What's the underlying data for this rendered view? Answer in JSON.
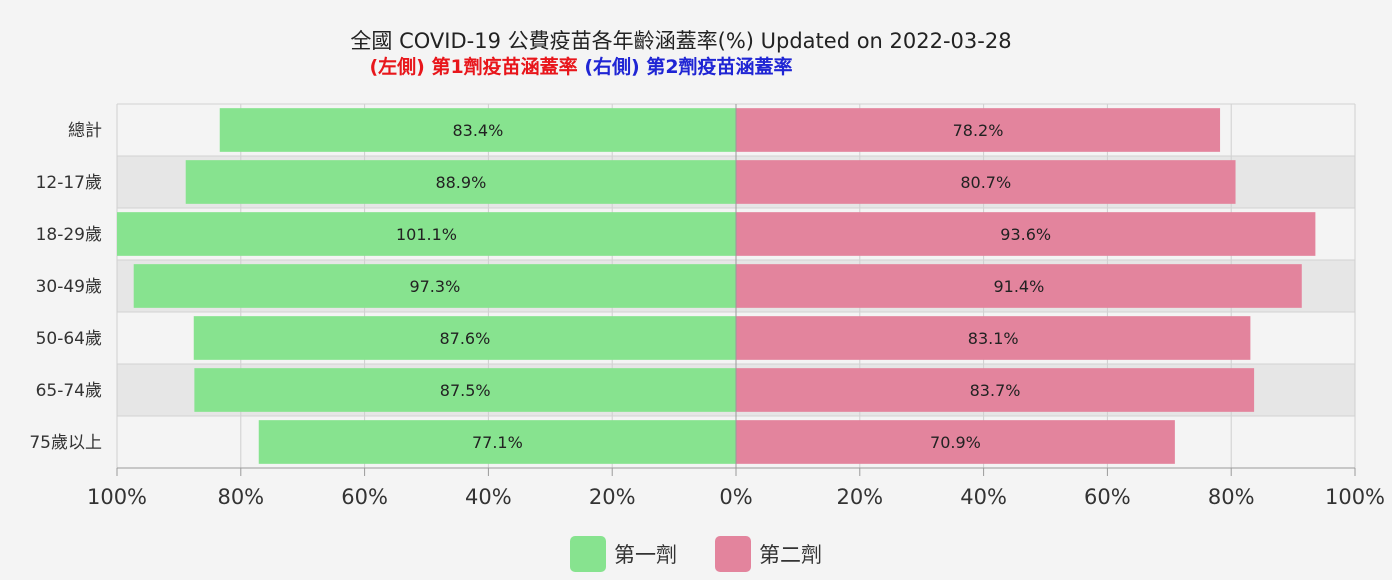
{
  "header": {
    "title": "全國 COVID-19 公費疫苗各年齡涵蓋率(%) Updated on 2022-03-28",
    "subtitle_left_tag": "(左側)",
    "subtitle_left_text": "第1劑疫苗涵蓋率",
    "subtitle_right_tag": "(右側)",
    "subtitle_right_text": "第2劑疫苗涵蓋率"
  },
  "legend": {
    "dose1_label": "第一劑",
    "dose2_label": "第二劑"
  },
  "colors": {
    "dose1": "#87e38f",
    "dose2": "#e3849d",
    "band": "#e6e6e6"
  },
  "chart_data": {
    "type": "bar",
    "orientation": "horizontal-diverging",
    "categories": [
      "總計",
      "12-17歲",
      "18-29歲",
      "30-49歲",
      "50-64歲",
      "65-74歲",
      "75歲以上"
    ],
    "series": [
      {
        "name": "第一劑",
        "side": "left",
        "values": [
          83.4,
          88.9,
          101.1,
          97.3,
          87.6,
          87.5,
          77.1
        ]
      },
      {
        "name": "第二劑",
        "side": "right",
        "values": [
          78.2,
          80.7,
          93.6,
          91.4,
          83.1,
          83.7,
          70.9
        ]
      }
    ],
    "data_labels": [
      [
        "83.4%",
        "88.9%",
        "101.1%",
        "97.3%",
        "87.6%",
        "87.5%",
        "77.1%"
      ],
      [
        "78.2%",
        "80.7%",
        "93.6%",
        "91.4%",
        "83.1%",
        "83.7%",
        "70.9%"
      ]
    ],
    "xlim": [
      -100,
      100
    ],
    "xticks": [
      -100,
      -80,
      -60,
      -40,
      -20,
      0,
      20,
      40,
      60,
      80,
      100
    ],
    "xtick_labels": [
      "100%",
      "80%",
      "60%",
      "40%",
      "20%",
      "0%",
      "20%",
      "40%",
      "60%",
      "80%",
      "100%"
    ],
    "grid": true,
    "legend_position": "bottom"
  }
}
